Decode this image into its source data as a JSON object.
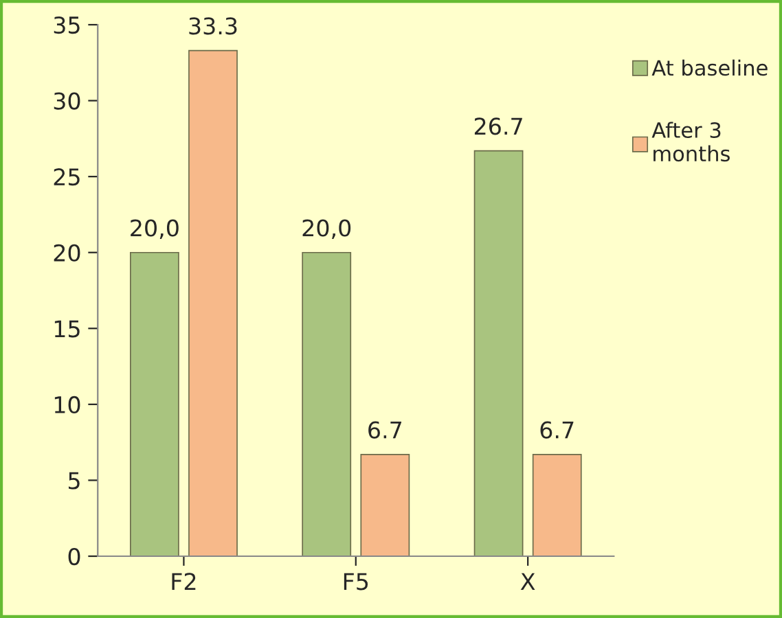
{
  "chart_data": {
    "type": "bar",
    "categories": [
      "F2",
      "F5",
      "X"
    ],
    "series": [
      {
        "name": "At baseline",
        "color": "#a9c47f",
        "values": [
          20.0,
          20.0,
          26.7
        ],
        "value_labels": [
          "20,0",
          "20,0",
          "26.7"
        ]
      },
      {
        "name": "After 3\nmonths",
        "color": "#f7b98a",
        "values": [
          33.3,
          6.7,
          6.7
        ],
        "value_labels": [
          "33.3",
          "6.7",
          "6.7"
        ]
      }
    ],
    "ylim": [
      0,
      35
    ],
    "yticks": [
      0,
      5,
      10,
      15,
      20,
      25,
      30,
      35
    ],
    "grid": false,
    "legend": "right"
  }
}
